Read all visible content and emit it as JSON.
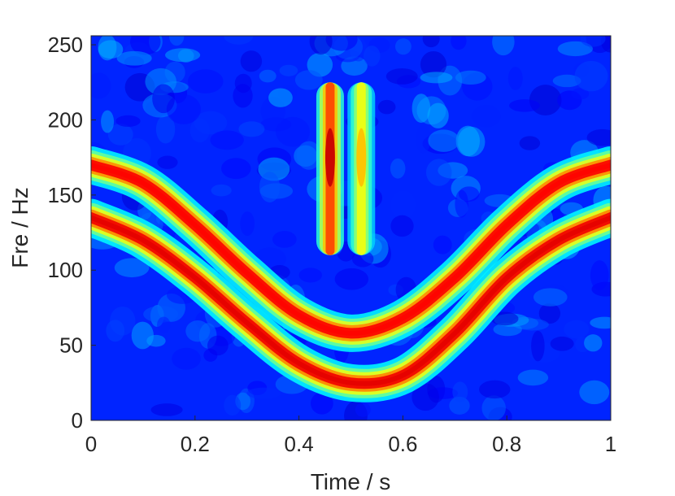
{
  "chart_data": {
    "type": "heatmap",
    "title": "",
    "xlabel": "Time / s",
    "ylabel": "Fre / Hz",
    "xlim": [
      0,
      1
    ],
    "ylim": [
      0,
      256
    ],
    "x_ticks": [
      "0",
      "0.2",
      "0.4",
      "0.6",
      "0.8",
      "1"
    ],
    "y_ticks": [
      "0",
      "50",
      "100",
      "150",
      "200",
      "250"
    ],
    "colormap": "jet",
    "grid": false,
    "series": [
      {
        "shape": "curve",
        "x": [
          0,
          0.1,
          0.2,
          0.3,
          0.4,
          0.5,
          0.6,
          0.7,
          0.8,
          0.9,
          1.0
        ],
        "y": [
          170,
          158,
          130,
          98,
          70,
          58,
          68,
          95,
          130,
          158,
          170
        ],
        "intensity": 0.85
      },
      {
        "shape": "curve",
        "x": [
          0,
          0.1,
          0.2,
          0.3,
          0.4,
          0.5,
          0.6,
          0.7,
          0.8,
          0.9,
          1.0
        ],
        "y": [
          135,
          120,
          95,
          65,
          38,
          25,
          30,
          58,
          95,
          120,
          135
        ],
        "intensity": 0.88
      },
      {
        "shape": "vertical-band",
        "x": 0.46,
        "y_range": [
          110,
          225
        ],
        "peak_y": 175,
        "intensity": 0.9
      },
      {
        "shape": "vertical-band",
        "x": 0.52,
        "y_range": [
          110,
          225
        ],
        "peak_y": 175,
        "intensity": 0.65
      }
    ]
  }
}
